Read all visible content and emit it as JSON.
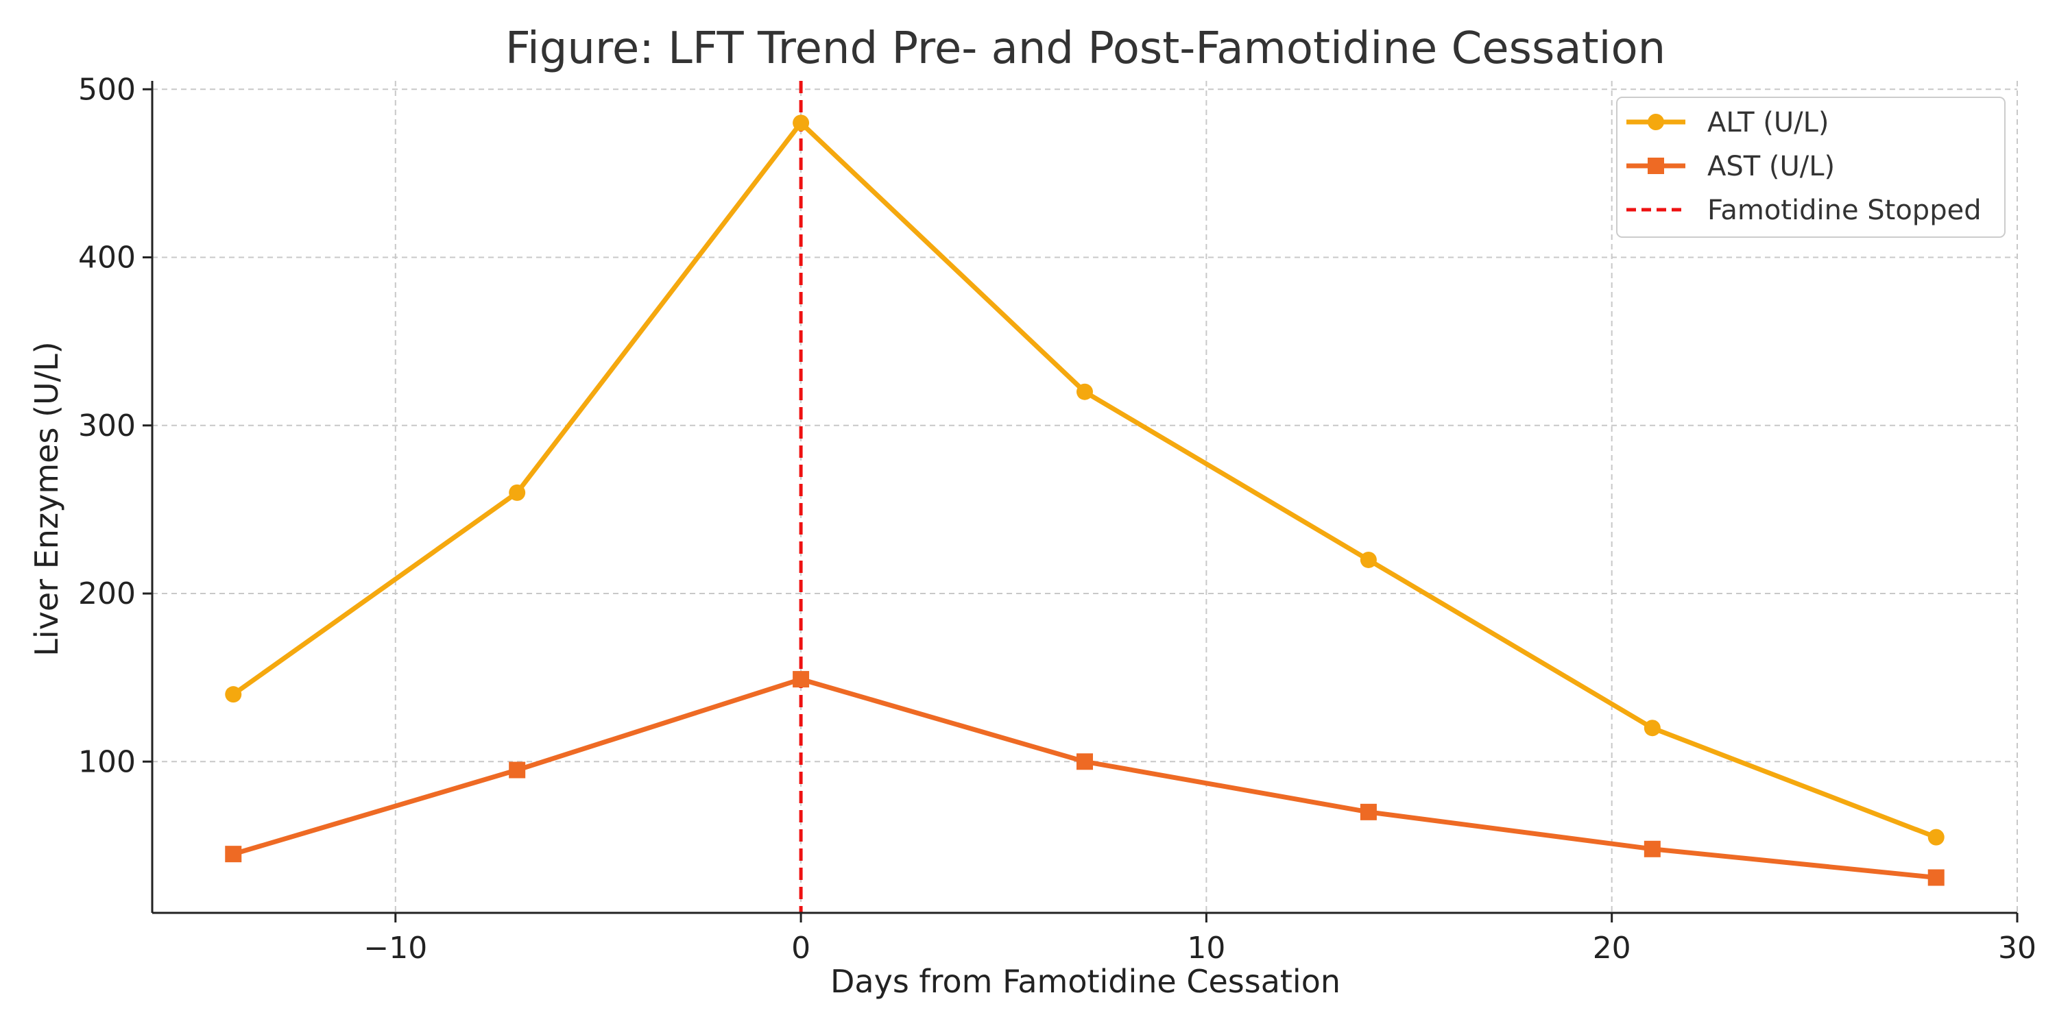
{
  "chart_data": {
    "type": "line",
    "title": "Figure: LFT Trend Pre- and Post-Famotidine Cessation",
    "xlabel": "Days from Famotidine Cessation",
    "ylabel": "Liver Enzymes (U/L)",
    "xlim": [
      -16,
      30
    ],
    "ylim": [
      10,
      505
    ],
    "x_ticks": [
      -10,
      0,
      10,
      20,
      30
    ],
    "x_tick_labels": [
      "−10",
      "0",
      "10",
      "20",
      "30"
    ],
    "y_ticks": [
      100,
      200,
      300,
      400,
      500
    ],
    "y_tick_labels": [
      "100",
      "200",
      "300",
      "400",
      "500"
    ],
    "grid": true,
    "legend_position": "top-right",
    "x": [
      -14,
      -7,
      0,
      7,
      14,
      21,
      28
    ],
    "series": [
      {
        "name": "ALT (U/L)",
        "values": [
          140,
          260,
          480,
          320,
          220,
          120,
          55
        ],
        "color": "#F5A80E",
        "marker": "circle"
      },
      {
        "name": "AST (U/L)",
        "values": [
          45,
          95,
          149,
          100,
          70,
          48,
          31
        ],
        "color": "#EE6A24",
        "marker": "square"
      }
    ],
    "vline": {
      "name": "Famotidine Stopped",
      "x": 0,
      "color": "#EE1111",
      "style": "dashed"
    }
  }
}
